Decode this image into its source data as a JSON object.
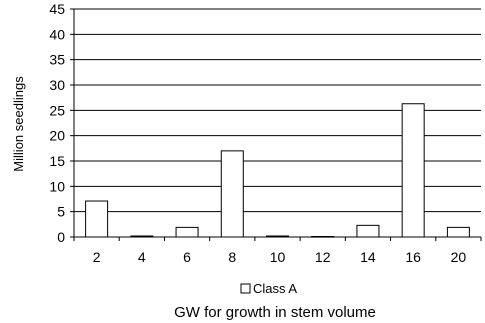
{
  "chart_data": {
    "type": "bar",
    "categories": [
      "2",
      "4",
      "6",
      "8",
      "10",
      "12",
      "14",
      "16",
      "20"
    ],
    "series": [
      {
        "name": "Class A",
        "values": [
          7.1,
          0.2,
          1.9,
          17.0,
          0.2,
          0.1,
          2.3,
          26.3,
          1.9
        ]
      }
    ],
    "xlabel": "GW for growth in stem volume",
    "ylabel": "Million seedlings",
    "ylim": [
      0,
      45
    ],
    "yticks": [
      "0",
      "5",
      "10",
      "15",
      "20",
      "25",
      "30",
      "35",
      "40",
      "45"
    ],
    "grid": true,
    "legend_position": "bottom",
    "colors": {
      "bar_fill": "#ffffff",
      "bar_stroke": "#000000",
      "grid": "#000000"
    }
  }
}
